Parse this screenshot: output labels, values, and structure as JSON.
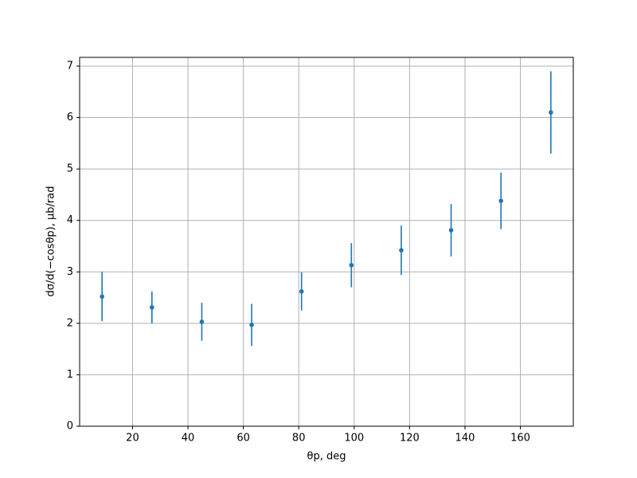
{
  "chart_data": {
    "type": "errorbar",
    "xlabel": "θp, deg",
    "ylabel": "dσ/d(−cosθp), μb/rad",
    "x": [
      9,
      27,
      45,
      63,
      81,
      99,
      117,
      135,
      153,
      171
    ],
    "series": [
      {
        "color": "#1f77b4",
        "values": [
          2.52,
          2.31,
          2.03,
          1.97,
          2.62,
          3.13,
          3.42,
          3.81,
          4.38,
          6.1
        ],
        "errors": [
          0.48,
          0.31,
          0.37,
          0.41,
          0.37,
          0.43,
          0.48,
          0.51,
          0.55,
          0.8
        ]
      }
    ],
    "xlim": [
      0.9,
      179.1
    ],
    "ylim": [
      0,
      7.17
    ],
    "xticks": [
      20,
      40,
      60,
      80,
      100,
      120,
      140,
      160
    ],
    "yticks": [
      0,
      1,
      2,
      3,
      4,
      5,
      6,
      7
    ],
    "grid": true
  }
}
